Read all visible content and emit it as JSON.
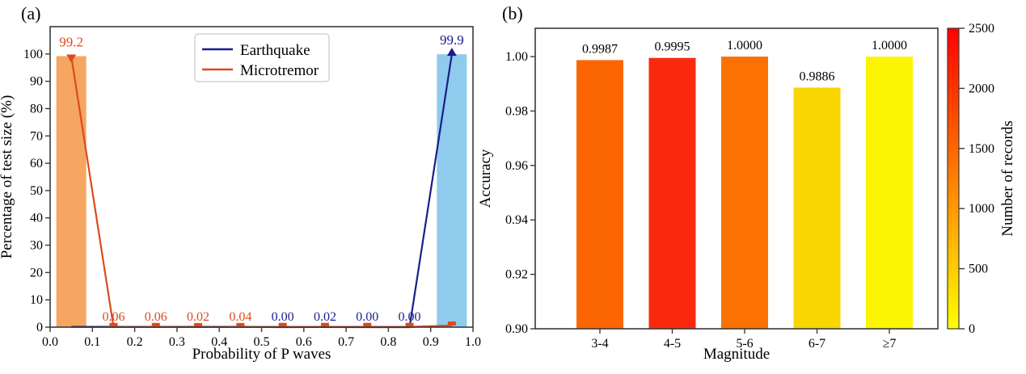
{
  "figure": {
    "background": "#ffffff",
    "frame_color": "#3a3a3a",
    "text_color": "#000000"
  },
  "chart_data": [
    {
      "panel_label": "(a)",
      "type": "bar+line",
      "xlabel": "Probability of P waves",
      "ylabel": "Percentage of test size (%)",
      "xlim": [
        0.0,
        1.0
      ],
      "ylim": [
        0,
        110
      ],
      "xticks": [
        "0.0",
        "0.1",
        "0.2",
        "0.3",
        "0.4",
        "0.5",
        "0.6",
        "0.7",
        "0.8",
        "0.9",
        "1.0"
      ],
      "yticks": [
        "0",
        "10",
        "20",
        "30",
        "40",
        "50",
        "60",
        "70",
        "80",
        "90",
        "100"
      ],
      "legend": {
        "position": "upper-center-left",
        "items": [
          {
            "label": "Earthquake",
            "color": "#1a1e8a"
          },
          {
            "label": "Microtremor",
            "color": "#dd4a1c"
          }
        ]
      },
      "bars": [
        {
          "x": 0.05,
          "value": 99.2,
          "label": "99.2",
          "fill": "#f5a660",
          "label_color": "#dd4a1c"
        },
        {
          "x": 0.95,
          "value": 99.9,
          "label": "99.9",
          "fill": "#8ecbec",
          "label_color": "#1a1e8a"
        }
      ],
      "series": [
        {
          "name": "Earthquake",
          "color": "#1a1e8a",
          "marker": "triangle-up",
          "x": [
            0.05,
            0.15,
            0.25,
            0.35,
            0.45,
            0.55,
            0.65,
            0.75,
            0.85,
            0.95
          ],
          "values": [
            0.1,
            0.1,
            0.1,
            0.1,
            0.1,
            0.0,
            0.02,
            0.0,
            0.0,
            99.9
          ],
          "point_labels": [
            "",
            "",
            "",
            "",
            "",
            "0.00",
            "0.02",
            "0.00",
            "0.00",
            ""
          ]
        },
        {
          "name": "Microtremor",
          "color": "#dd4a1c",
          "marker": "triangle-down",
          "x": [
            0.05,
            0.15,
            0.25,
            0.35,
            0.45,
            0.55,
            0.65,
            0.75,
            0.85,
            0.95
          ],
          "values": [
            99.2,
            0.06,
            0.06,
            0.02,
            0.04,
            0.1,
            0.1,
            0.1,
            0.1,
            0.6
          ],
          "point_labels": [
            "",
            "0.06",
            "0.06",
            "0.02",
            "0.04",
            "",
            "",
            "",
            "",
            ""
          ]
        }
      ]
    },
    {
      "panel_label": "(b)",
      "type": "bar",
      "xlabel": "Magnitude",
      "ylabel": "Accuracy",
      "categories": [
        "3-4",
        "4-5",
        "5-6",
        "6-7",
        "≥7"
      ],
      "values": [
        0.9987,
        0.9995,
        1.0,
        0.9886,
        1.0
      ],
      "value_labels": [
        "0.9987",
        "0.9995",
        "1.0000",
        "0.9886",
        "1.0000"
      ],
      "bar_colors": [
        "#fb6602",
        "#f9290d",
        "#fb7202",
        "#f9d602",
        "#fbf502"
      ],
      "records_estimated_from_color": [
        1500,
        2100,
        1400,
        400,
        100
      ],
      "ylim": [
        0.9,
        1.0104
      ],
      "yticks": [
        "0.90",
        "0.92",
        "0.94",
        "0.96",
        "0.98",
        "1.00"
      ],
      "colorbar": {
        "label": "Number of records",
        "min": 0,
        "max": 2500,
        "ticks": [
          "0",
          "500",
          "1000",
          "1500",
          "2000",
          "2500"
        ],
        "gradient_bottom": "#ffff00",
        "gradient_top": "#ff0000"
      }
    }
  ]
}
